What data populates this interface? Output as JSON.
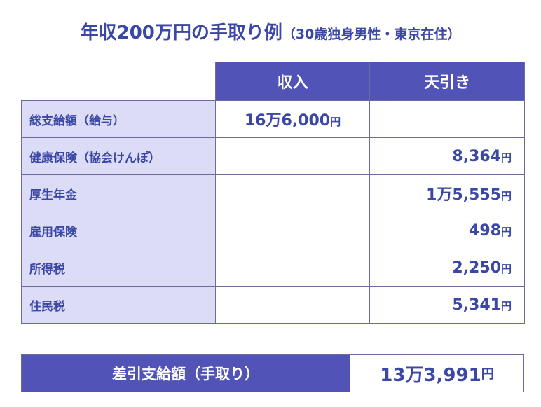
{
  "title": {
    "main": "年収200万円の手取り例",
    "sub": "（30歳独身男性・東京在住）"
  },
  "table": {
    "headers": {
      "income": "収入",
      "deduction": "天引き"
    },
    "rows": [
      {
        "label": "総支給額（給与）",
        "income": "16万6,000",
        "income_unit": "円",
        "deduction": "",
        "deduction_unit": ""
      },
      {
        "label": "健康保険（協会けんぽ）",
        "income": "",
        "income_unit": "",
        "deduction": "8,364",
        "deduction_unit": "円"
      },
      {
        "label": "厚生年金",
        "income": "",
        "income_unit": "",
        "deduction": "1万5,555",
        "deduction_unit": "円"
      },
      {
        "label": "雇用保険",
        "income": "",
        "income_unit": "",
        "deduction": "498",
        "deduction_unit": "円"
      },
      {
        "label": "所得税",
        "income": "",
        "income_unit": "",
        "deduction": "2,250",
        "deduction_unit": "円"
      },
      {
        "label": "住民税",
        "income": "",
        "income_unit": "",
        "deduction": "5,341",
        "deduction_unit": "円"
      }
    ]
  },
  "net": {
    "label": "差引支給額（手取り）",
    "value": "13万3,991",
    "unit": "円"
  },
  "colors": {
    "accent": "#3a47a6",
    "header_bg": "#5154b6",
    "label_bg": "#dcdcf6"
  }
}
